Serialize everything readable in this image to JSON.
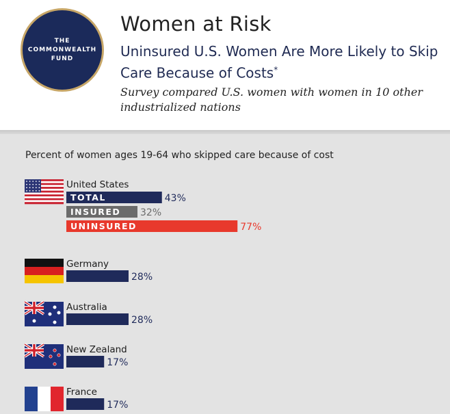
{
  "logo": {
    "line1": "THE",
    "line2": "COMMONWEALTH",
    "line3": "FUND"
  },
  "header": {
    "title": "Women at Risk",
    "subtitle": "Uninsured U.S. Women Are More Likely to Skip Care Because of Costs",
    "subtitle_mark": "*",
    "note": "Survey compared U.S. women with women in 10 other industrialized nations"
  },
  "colors": {
    "navy": "#1f2a5a",
    "gray": "#6b6b6b",
    "red": "#e8392c",
    "panel": "#e3e3e3"
  },
  "chart_data": {
    "type": "bar",
    "orientation": "horizontal",
    "title": "Percent of women ages 19-64 who skipped care because of cost",
    "groups": [
      {
        "country": "United States",
        "flag": "us-flag-icon",
        "bars": [
          {
            "label": "TOTAL",
            "value": 43,
            "display": "43%",
            "color": "navy"
          },
          {
            "label": "INSURED",
            "value": 32,
            "display": "32%",
            "color": "gray"
          },
          {
            "label": "UNINSURED",
            "value": 77,
            "display": "77%",
            "color": "red"
          }
        ]
      },
      {
        "country": "Germany",
        "flag": "germany-flag-icon",
        "bars": [
          {
            "label": "",
            "value": 28,
            "display": "28%",
            "color": "navy"
          }
        ]
      },
      {
        "country": "Australia",
        "flag": "australia-flag-icon",
        "bars": [
          {
            "label": "",
            "value": 28,
            "display": "28%",
            "color": "navy"
          }
        ]
      },
      {
        "country": "New Zealand",
        "flag": "new-zealand-flag-icon",
        "bars": [
          {
            "label": "",
            "value": 17,
            "display": "17%",
            "color": "navy"
          }
        ]
      },
      {
        "country": "France",
        "flag": "france-flag-icon",
        "bars": [
          {
            "label": "",
            "value": 17,
            "display": "17%",
            "color": "navy"
          }
        ]
      }
    ]
  }
}
